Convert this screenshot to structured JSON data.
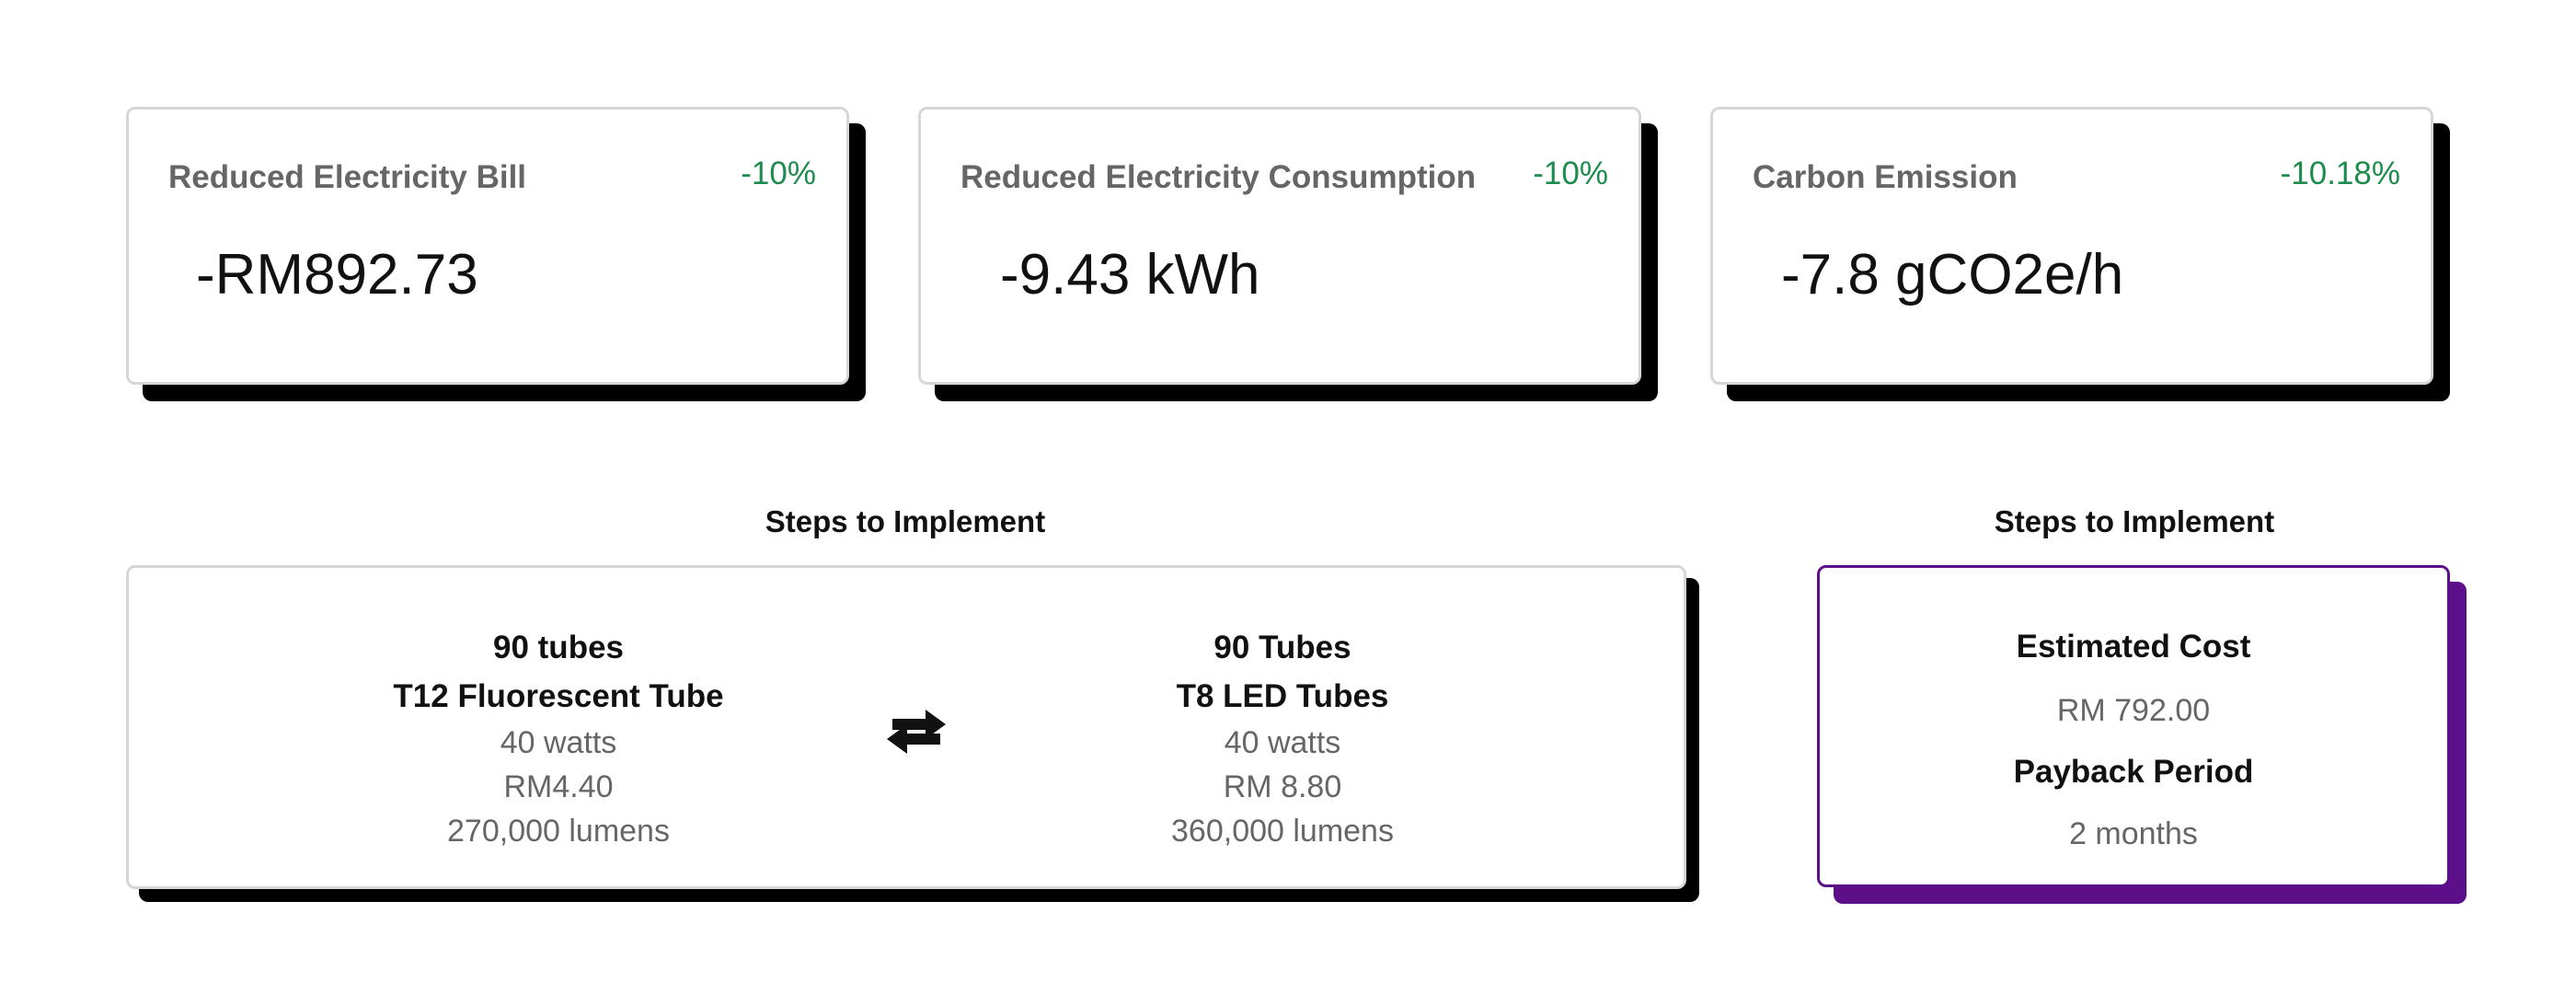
{
  "stats": [
    {
      "title": "Reduced Electricity Bill",
      "change": "-10%",
      "value": "-RM892.73"
    },
    {
      "title": "Reduced Electricity Consumption",
      "change": "-10%",
      "value": "-9.43 kWh"
    },
    {
      "title": "Carbon Emission",
      "change": "-10.18%",
      "value": "-7.8 gCO2e/h"
    }
  ],
  "steps": {
    "heading": "Steps to Implement",
    "current": {
      "qty": "90 tubes",
      "name": "T12 Fluorescent Tube",
      "watts": "40 watts",
      "price": "RM4.40",
      "lumens": "270,000 lumens"
    },
    "replacement": {
      "qty": "90 Tubes",
      "name": "T8 LED Tubes",
      "watts": "40 watts",
      "price": "RM 8.80",
      "lumens": "360,000 lumens"
    },
    "swap_icon": "exchange-arrows-icon"
  },
  "cost": {
    "heading": "Steps to Implement",
    "estimated_cost_label": "Estimated Cost",
    "estimated_cost_value": "RM 792.00",
    "payback_label": "Payback Period",
    "payback_value": "2 months"
  },
  "colors": {
    "positive_change": "#1e8c4e",
    "accent_purple": "#5d0f8a",
    "card_shadow": "#000000",
    "muted_text": "#666666"
  }
}
